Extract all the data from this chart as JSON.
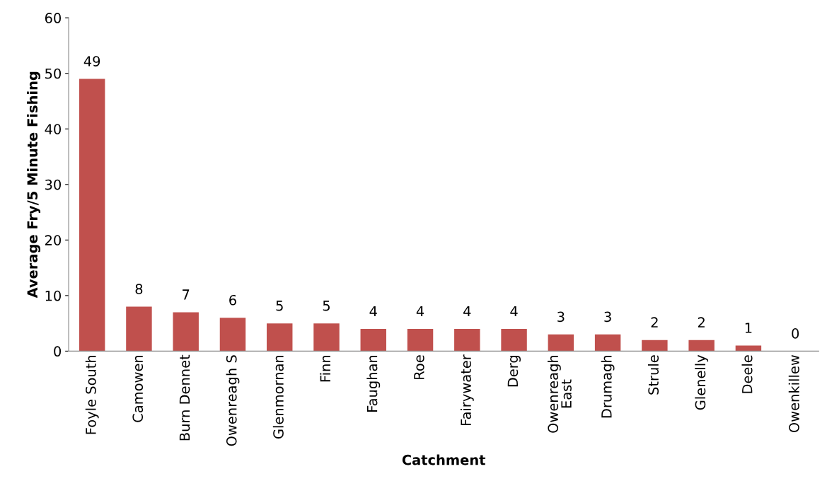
{
  "chart_data": {
    "type": "bar",
    "xlabel": "Catchment",
    "ylabel": "Average Fry/5 Minute Fishing",
    "categories": [
      "Foyle South",
      "Camowen",
      "Burn Dennet",
      "Owenreagh S",
      "Glenmornan",
      "Finn",
      "Faughan",
      "Roe",
      "Fairywater",
      "Derg",
      "Owenreagh\nEast",
      "Drumagh",
      "Strule",
      "Glenelly",
      "Deele",
      "Owenkillew"
    ],
    "values": [
      49,
      8,
      7,
      6,
      5,
      5,
      4,
      4,
      4,
      4,
      3,
      3,
      2,
      2,
      1,
      0
    ],
    "color": "#c0504d",
    "ylim": [
      0,
      60
    ],
    "yticks": [
      0,
      10,
      20,
      30,
      40,
      50,
      60
    ],
    "grid": false,
    "data_labels": true
  }
}
